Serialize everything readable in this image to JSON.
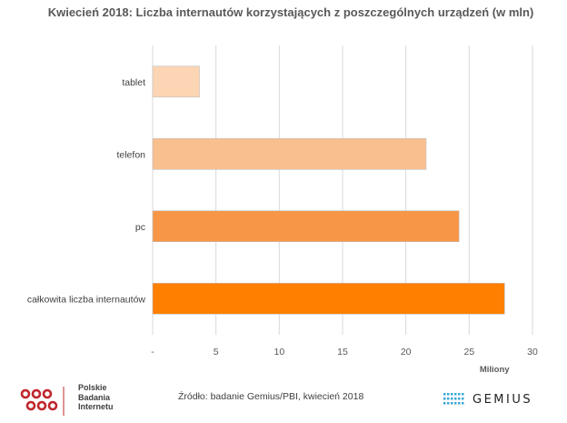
{
  "chart_data": {
    "type": "bar",
    "orientation": "horizontal",
    "title": "Kwiecień 2018: Liczba internautów korzystających z poszczególnych urządzeń (w mln)",
    "categories": [
      "tablet",
      "telefon",
      "pc",
      "całkowita liczba internautów"
    ],
    "values": [
      3.7,
      21.6,
      24.2,
      27.8
    ],
    "colors": [
      "#fcd5b4",
      "#fabf8f",
      "#f79646",
      "#ff7f00"
    ],
    "xlabel": "Miliony",
    "xlim": [
      0,
      30
    ],
    "xticks": [
      "-",
      "5",
      "10",
      "15",
      "20",
      "25",
      "30"
    ],
    "grid": true
  },
  "footer": {
    "source": "Źródło: badanie Gemius/PBI, kwiecień 2018",
    "pbi_lines": [
      "Polskie",
      "Badania",
      "Internetu"
    ],
    "gemius_brand": "GEMIUS"
  },
  "colors": {
    "pbi_red": "#c0272d",
    "gemius_blue": "#3aa7d6",
    "grid": "#d9d9d9"
  }
}
